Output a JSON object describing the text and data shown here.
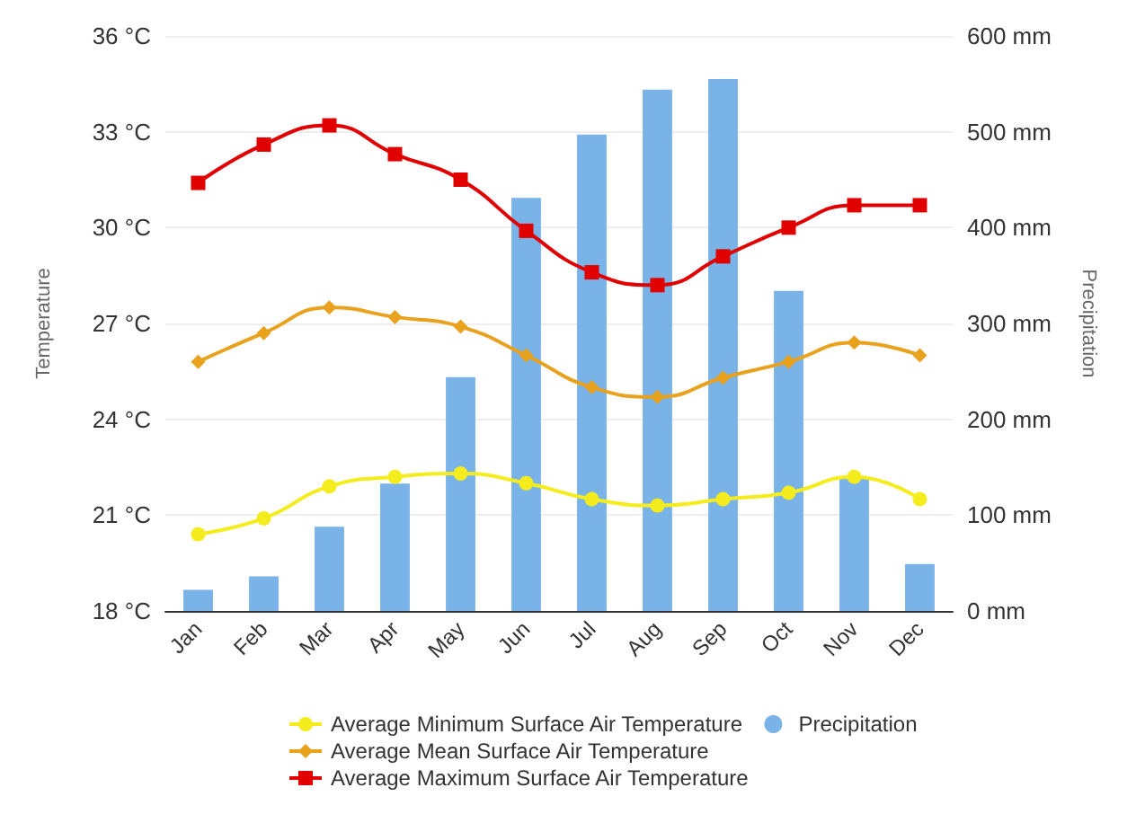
{
  "chart_data": {
    "type": "line",
    "ylabel": "Temperature",
    "y2label": "Precipitation",
    "categories": [
      "Jan",
      "Feb",
      "Mar",
      "Apr",
      "May",
      "Jun",
      "Jul",
      "Aug",
      "Sep",
      "Oct",
      "Nov",
      "Dec"
    ],
    "series": [
      {
        "name": "Average Minimum Surface Air Temperature",
        "color": "#f5ec1e",
        "marker": "circle",
        "values": [
          20.4,
          20.9,
          21.9,
          22.2,
          22.3,
          22.0,
          21.5,
          21.3,
          21.5,
          21.7,
          22.2,
          21.5
        ]
      },
      {
        "name": "Average Mean Surface Air Temperature",
        "color": "#e9a21e",
        "marker": "diamond",
        "values": [
          25.8,
          26.7,
          27.5,
          27.2,
          26.9,
          26.0,
          25.0,
          24.7,
          25.3,
          25.8,
          26.4,
          26.0
        ]
      },
      {
        "name": "Average Maximum Surface Air Temperature",
        "color": "#e00000",
        "marker": "square",
        "values": [
          31.4,
          32.6,
          33.2,
          32.3,
          31.5,
          29.9,
          28.6,
          28.2,
          29.1,
          30.0,
          30.7,
          30.7
        ]
      },
      {
        "name": "Precipitation",
        "type": "bar",
        "axis": "y2",
        "color": "#7ab3e8",
        "values": [
          22,
          36,
          88,
          133,
          244,
          431,
          497,
          544,
          555,
          334,
          139,
          49
        ]
      }
    ],
    "ylim": [
      18,
      36
    ],
    "yticks": [
      {
        "value": 18,
        "label": "18 °C"
      },
      {
        "value": 21,
        "label": "21 °C"
      },
      {
        "value": 24,
        "label": "24 °C"
      },
      {
        "value": 27,
        "label": "27 °C"
      },
      {
        "value": 30,
        "label": "30 °C"
      },
      {
        "value": 33,
        "label": "33 °C"
      },
      {
        "value": 36,
        "label": "36 °C"
      }
    ],
    "y2lim": [
      0,
      600
    ],
    "y2ticks": [
      {
        "value": 0,
        "label": "0 mm"
      },
      {
        "value": 100,
        "label": "100 mm"
      },
      {
        "value": 200,
        "label": "200 mm"
      },
      {
        "value": 300,
        "label": "300 mm"
      },
      {
        "value": 400,
        "label": "400 mm"
      },
      {
        "value": 500,
        "label": "500 mm"
      },
      {
        "value": 600,
        "label": "600 mm"
      }
    ],
    "grid": "y",
    "legend": "bottom"
  }
}
